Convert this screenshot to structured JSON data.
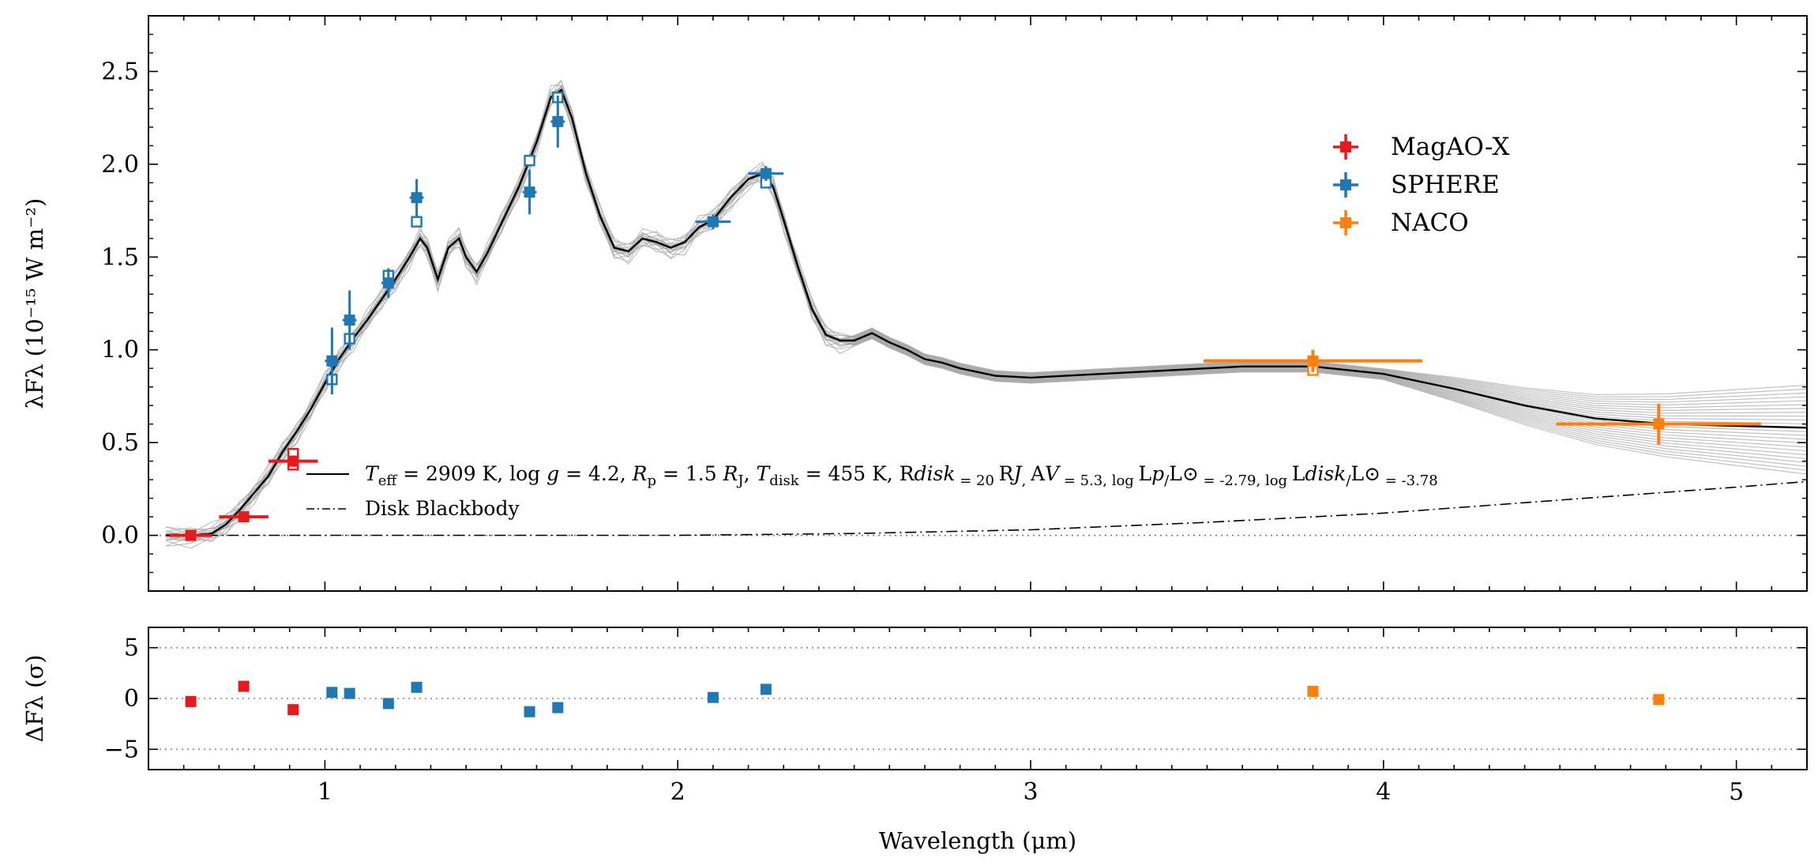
{
  "chart_data": {
    "type": "scatter",
    "x_axis": {
      "label": "Wavelength (μm)",
      "range": [
        0.5,
        5.2
      ],
      "ticks": [
        1,
        2,
        3,
        4,
        5
      ]
    },
    "panels": [
      {
        "id": "sed",
        "ylabel": "λFλ (10⁻¹⁵ W m⁻²)",
        "ylim": [
          -0.3,
          2.8
        ],
        "yticks": [
          "0.0",
          "0.5",
          "1.0",
          "1.5",
          "2.0",
          "2.5"
        ],
        "yticks_values": [
          0.0,
          0.5,
          1.0,
          1.5,
          2.0,
          2.5
        ],
        "zero_line": true,
        "model": {
          "label": "T_eff = 2909 K, log g = 4.2, R_p = 1.5 R_J, T_disk = 455 K, R_disk = 20 R_J, A_V = 5.3, log L_p/L⊙ = -2.79, log L_disk/L⊙ = -3.78",
          "label_parts": [
            "T",
            "eff",
            " = 2909 K, log ",
            "g",
            " = 4.2, ",
            "R",
            "p",
            " = 1.5 ",
            "R",
            "J",
            ", ",
            "T",
            "disk",
            " = 455 K, ",
            "R",
            "disk",
            " = 20 ",
            "R",
            "J",
            ", ",
            "A",
            "V",
            " = 5.3, log ",
            "L",
            "p",
            "/",
            "L",
            "⊙",
            " = -2.79, log ",
            "L",
            "disk",
            "/",
            "L",
            "⊙",
            " = -3.78"
          ],
          "color": "#000000",
          "samples_color": "#a0a0a0",
          "x": [
            0.55,
            0.62,
            0.68,
            0.72,
            0.76,
            0.8,
            0.84,
            0.88,
            0.92,
            0.96,
            1.0,
            1.04,
            1.08,
            1.12,
            1.16,
            1.2,
            1.24,
            1.27,
            1.29,
            1.32,
            1.35,
            1.38,
            1.4,
            1.43,
            1.46,
            1.5,
            1.55,
            1.6,
            1.64,
            1.67,
            1.7,
            1.74,
            1.78,
            1.82,
            1.86,
            1.9,
            1.94,
            1.98,
            2.02,
            2.06,
            2.1,
            2.15,
            2.2,
            2.24,
            2.27,
            2.3,
            2.34,
            2.38,
            2.42,
            2.46,
            2.5,
            2.55,
            2.6,
            2.65,
            2.7,
            2.75,
            2.8,
            2.9,
            3.0,
            3.2,
            3.4,
            3.6,
            3.8,
            4.0,
            4.2,
            4.4,
            4.6,
            4.8,
            5.0,
            5.2
          ],
          "y": [
            0.0,
            0.0,
            0.01,
            0.06,
            0.14,
            0.23,
            0.32,
            0.45,
            0.56,
            0.68,
            0.82,
            0.95,
            1.06,
            1.16,
            1.27,
            1.38,
            1.5,
            1.6,
            1.55,
            1.38,
            1.55,
            1.6,
            1.5,
            1.42,
            1.52,
            1.68,
            1.88,
            2.12,
            2.36,
            2.4,
            2.25,
            1.95,
            1.72,
            1.55,
            1.53,
            1.6,
            1.58,
            1.55,
            1.58,
            1.66,
            1.7,
            1.82,
            1.92,
            1.95,
            1.88,
            1.7,
            1.45,
            1.22,
            1.08,
            1.05,
            1.05,
            1.09,
            1.04,
            1.0,
            0.95,
            0.93,
            0.9,
            0.86,
            0.85,
            0.87,
            0.89,
            0.91,
            0.91,
            0.87,
            0.79,
            0.7,
            0.63,
            0.6,
            0.59,
            0.58
          ]
        },
        "disk_blackbody": {
          "label": "Disk Blackbody",
          "x": [
            0.55,
            0.8,
            1.0,
            1.5,
            2.0,
            2.5,
            3.0,
            3.5,
            4.0,
            4.5,
            5.0,
            5.2
          ],
          "y": [
            0.0,
            0.0,
            0.0,
            0.0,
            0.0,
            0.01,
            0.03,
            0.07,
            0.12,
            0.19,
            0.26,
            0.29
          ]
        },
        "model_points": {
          "x": [
            0.91,
            0.91,
            1.02,
            1.07,
            1.18,
            1.26,
            1.58,
            1.66,
            2.25,
            3.8
          ],
          "y": [
            0.44,
            0.38,
            0.84,
            1.06,
            1.4,
            1.69,
            2.02,
            2.36,
            1.9,
            0.89
          ]
        },
        "series": [
          {
            "name": "MagAO-X",
            "color": "#e41a1c",
            "points": [
              {
                "x": 0.62,
                "y": 0.0,
                "xerr": 0.06,
                "yerr": 0.01
              },
              {
                "x": 0.77,
                "y": 0.1,
                "xerr": 0.07,
                "yerr": 0.02
              },
              {
                "x": 0.91,
                "y": 0.4,
                "xerr": 0.07,
                "yerr": 0.03
              }
            ]
          },
          {
            "name": "SPHERE",
            "color": "#1f77b4",
            "points": [
              {
                "x": 1.02,
                "y": 0.94,
                "xerr": 0.02,
                "yerr": 0.18
              },
              {
                "x": 1.07,
                "y": 1.16,
                "xerr": 0.02,
                "yerr": 0.16
              },
              {
                "x": 1.18,
                "y": 1.36,
                "xerr": 0.02,
                "yerr": 0.08
              },
              {
                "x": 1.26,
                "y": 1.82,
                "xerr": 0.02,
                "yerr": 0.1
              },
              {
                "x": 1.58,
                "y": 1.85,
                "xerr": 0.02,
                "yerr": 0.12
              },
              {
                "x": 1.66,
                "y": 2.23,
                "xerr": 0.02,
                "yerr": 0.14
              },
              {
                "x": 2.1,
                "y": 1.69,
                "xerr": 0.05,
                "yerr": 0.04
              },
              {
                "x": 2.25,
                "y": 1.95,
                "xerr": 0.05,
                "yerr": 0.04
              }
            ]
          },
          {
            "name": "NACO",
            "color": "#ff7f0e",
            "points": [
              {
                "x": 3.8,
                "y": 0.94,
                "xerr": 0.31,
                "yerr": 0.06
              },
              {
                "x": 4.78,
                "y": 0.6,
                "xerr": 0.29,
                "yerr": 0.11
              }
            ]
          }
        ],
        "legend_position": "upper right"
      },
      {
        "id": "residuals",
        "ylabel": "ΔFλ (σ)",
        "ylim": [
          -7,
          7
        ],
        "yticks": [
          "−5",
          "0",
          "5"
        ],
        "yticks_values": [
          -5,
          0,
          5
        ],
        "reference_lines": [
          -5,
          0,
          5
        ],
        "series": [
          {
            "name": "MagAO-X",
            "color": "#e41a1c",
            "x": [
              0.62,
              0.77,
              0.91
            ],
            "y": [
              -0.3,
              1.2,
              -1.1
            ]
          },
          {
            "name": "SPHERE",
            "color": "#1f77b4",
            "x": [
              1.02,
              1.07,
              1.18,
              1.26,
              1.58,
              1.66,
              2.1,
              2.25
            ],
            "y": [
              0.6,
              0.5,
              -0.5,
              1.1,
              -1.3,
              -0.9,
              0.1,
              0.9
            ]
          },
          {
            "name": "NACO",
            "color": "#ff7f0e",
            "x": [
              3.8,
              4.78
            ],
            "y": [
              0.7,
              -0.1
            ]
          }
        ]
      }
    ]
  }
}
